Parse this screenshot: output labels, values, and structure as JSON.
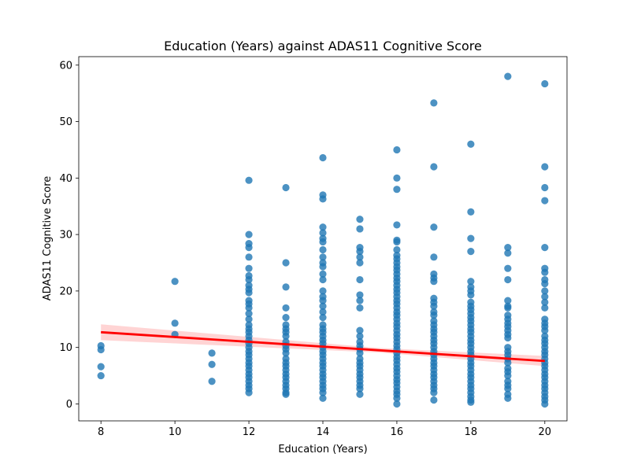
{
  "chart_data": {
    "type": "scatter",
    "title": "Education (Years) against ADAS11 Cognitive Score",
    "xlabel": "Education (Years)",
    "ylabel": "ADAS11 Cognitive Score",
    "xlim": [
      7.4,
      20.6
    ],
    "ylim": [
      -3,
      61.5
    ],
    "xticks": [
      8,
      10,
      12,
      14,
      16,
      18,
      20
    ],
    "yticks": [
      0,
      10,
      20,
      30,
      40,
      50,
      60
    ],
    "grid": false,
    "point_color": "#1f77b4",
    "regression": {
      "color": "#ff0000",
      "ci_color": "#ffcccc",
      "x": [
        8,
        20
      ],
      "y": [
        12.7,
        7.6
      ],
      "ci_halfwidth_start": 1.4,
      "ci_halfwidth_mid": 0.4,
      "ci_halfwidth_end": 0.9
    },
    "points": [
      [
        8,
        10.3
      ],
      [
        8,
        9.6
      ],
      [
        8,
        6.6
      ],
      [
        8,
        5.0
      ],
      [
        10,
        21.7
      ],
      [
        10,
        14.3
      ],
      [
        10,
        12.3
      ],
      [
        11,
        9.0
      ],
      [
        11,
        7.0
      ],
      [
        11,
        4.0
      ],
      [
        12,
        39.6
      ],
      [
        12,
        30.0
      ],
      [
        12,
        28.4
      ],
      [
        12,
        27.7
      ],
      [
        12,
        26.0
      ],
      [
        12,
        24.0
      ],
      [
        12,
        22.7
      ],
      [
        12,
        22.0
      ],
      [
        12,
        21.0
      ],
      [
        12,
        20.3
      ],
      [
        12,
        19.7
      ],
      [
        12,
        18.3
      ],
      [
        12,
        17.7
      ],
      [
        12,
        17.0
      ],
      [
        12,
        16.0
      ],
      [
        12,
        15.0
      ],
      [
        12,
        14.0
      ],
      [
        12,
        13.3
      ],
      [
        12,
        12.7
      ],
      [
        12,
        12.0
      ],
      [
        12,
        11.3
      ],
      [
        12,
        10.7
      ],
      [
        12,
        10.0
      ],
      [
        12,
        9.3
      ],
      [
        12,
        8.7
      ],
      [
        12,
        8.0
      ],
      [
        12,
        7.3
      ],
      [
        12,
        6.7
      ],
      [
        12,
        6.0
      ],
      [
        12,
        5.3
      ],
      [
        12,
        4.7
      ],
      [
        12,
        4.0
      ],
      [
        12,
        3.3
      ],
      [
        12,
        2.7
      ],
      [
        12,
        2.0
      ],
      [
        13,
        38.3
      ],
      [
        13,
        25.0
      ],
      [
        13,
        20.7
      ],
      [
        13,
        17.0
      ],
      [
        13,
        15.3
      ],
      [
        13,
        14.0
      ],
      [
        13,
        13.3
      ],
      [
        13,
        12.7
      ],
      [
        13,
        12.0
      ],
      [
        13,
        11.0
      ],
      [
        13,
        10.3
      ],
      [
        13,
        9.7
      ],
      [
        13,
        9.0
      ],
      [
        13,
        8.0
      ],
      [
        13,
        7.3
      ],
      [
        13,
        6.7
      ],
      [
        13,
        6.0
      ],
      [
        13,
        5.3
      ],
      [
        13,
        4.7
      ],
      [
        13,
        4.0
      ],
      [
        13,
        3.3
      ],
      [
        13,
        2.7
      ],
      [
        13,
        2.0
      ],
      [
        13,
        1.7
      ],
      [
        14,
        43.6
      ],
      [
        14,
        37.0
      ],
      [
        14,
        36.3
      ],
      [
        14,
        31.3
      ],
      [
        14,
        30.3
      ],
      [
        14,
        29.3
      ],
      [
        14,
        28.7
      ],
      [
        14,
        27.3
      ],
      [
        14,
        26.0
      ],
      [
        14,
        25.0
      ],
      [
        14,
        24.3
      ],
      [
        14,
        23.0
      ],
      [
        14,
        22.0
      ],
      [
        14,
        20.0
      ],
      [
        14,
        19.0
      ],
      [
        14,
        18.3
      ],
      [
        14,
        17.3
      ],
      [
        14,
        16.3
      ],
      [
        14,
        15.3
      ],
      [
        14,
        14.0
      ],
      [
        14,
        13.3
      ],
      [
        14,
        12.7
      ],
      [
        14,
        12.0
      ],
      [
        14,
        11.3
      ],
      [
        14,
        10.7
      ],
      [
        14,
        10.0
      ],
      [
        14,
        9.3
      ],
      [
        14,
        8.7
      ],
      [
        14,
        8.0
      ],
      [
        14,
        7.3
      ],
      [
        14,
        6.7
      ],
      [
        14,
        6.0
      ],
      [
        14,
        5.3
      ],
      [
        14,
        4.7
      ],
      [
        14,
        4.0
      ],
      [
        14,
        3.3
      ],
      [
        14,
        2.7
      ],
      [
        14,
        2.0
      ],
      [
        14,
        1.0
      ],
      [
        15,
        32.7
      ],
      [
        15,
        31.0
      ],
      [
        15,
        27.7
      ],
      [
        15,
        27.0
      ],
      [
        15,
        26.0
      ],
      [
        15,
        25.0
      ],
      [
        15,
        22.0
      ],
      [
        15,
        19.3
      ],
      [
        15,
        18.3
      ],
      [
        15,
        17.0
      ],
      [
        15,
        13.0
      ],
      [
        15,
        12.0
      ],
      [
        15,
        11.0
      ],
      [
        15,
        10.3
      ],
      [
        15,
        9.7
      ],
      [
        15,
        9.0
      ],
      [
        15,
        8.0
      ],
      [
        15,
        7.3
      ],
      [
        15,
        6.7
      ],
      [
        15,
        6.0
      ],
      [
        15,
        5.3
      ],
      [
        15,
        4.7
      ],
      [
        15,
        4.0
      ],
      [
        15,
        3.3
      ],
      [
        15,
        2.7
      ],
      [
        15,
        1.7
      ],
      [
        16,
        45.0
      ],
      [
        16,
        40.0
      ],
      [
        16,
        38.0
      ],
      [
        16,
        31.7
      ],
      [
        16,
        29.0
      ],
      [
        16,
        28.7
      ],
      [
        16,
        27.3
      ],
      [
        16,
        26.3
      ],
      [
        16,
        25.7
      ],
      [
        16,
        25.0
      ],
      [
        16,
        24.3
      ],
      [
        16,
        23.7
      ],
      [
        16,
        23.0
      ],
      [
        16,
        22.3
      ],
      [
        16,
        21.7
      ],
      [
        16,
        21.0
      ],
      [
        16,
        20.3
      ],
      [
        16,
        19.7
      ],
      [
        16,
        19.0
      ],
      [
        16,
        18.3
      ],
      [
        16,
        17.7
      ],
      [
        16,
        17.0
      ],
      [
        16,
        16.3
      ],
      [
        16,
        15.7
      ],
      [
        16,
        15.0
      ],
      [
        16,
        14.3
      ],
      [
        16,
        13.7
      ],
      [
        16,
        13.0
      ],
      [
        16,
        12.3
      ],
      [
        16,
        11.7
      ],
      [
        16,
        11.0
      ],
      [
        16,
        10.3
      ],
      [
        16,
        9.7
      ],
      [
        16,
        9.0
      ],
      [
        16,
        8.3
      ],
      [
        16,
        7.7
      ],
      [
        16,
        7.0
      ],
      [
        16,
        6.3
      ],
      [
        16,
        5.7
      ],
      [
        16,
        5.0
      ],
      [
        16,
        4.3
      ],
      [
        16,
        3.7
      ],
      [
        16,
        3.0
      ],
      [
        16,
        2.3
      ],
      [
        16,
        1.7
      ],
      [
        16,
        1.0
      ],
      [
        16,
        0.0
      ],
      [
        17,
        53.3
      ],
      [
        17,
        42.0
      ],
      [
        17,
        31.3
      ],
      [
        17,
        26.0
      ],
      [
        17,
        23.0
      ],
      [
        17,
        22.3
      ],
      [
        17,
        21.7
      ],
      [
        17,
        18.7
      ],
      [
        17,
        18.0
      ],
      [
        17,
        17.3
      ],
      [
        17,
        16.3
      ],
      [
        17,
        15.7
      ],
      [
        17,
        14.7
      ],
      [
        17,
        14.0
      ],
      [
        17,
        13.3
      ],
      [
        17,
        12.7
      ],
      [
        17,
        12.0
      ],
      [
        17,
        11.3
      ],
      [
        17,
        10.7
      ],
      [
        17,
        10.0
      ],
      [
        17,
        9.3
      ],
      [
        17,
        8.7
      ],
      [
        17,
        8.0
      ],
      [
        17,
        7.3
      ],
      [
        17,
        6.7
      ],
      [
        17,
        6.0
      ],
      [
        17,
        5.3
      ],
      [
        17,
        4.7
      ],
      [
        17,
        4.0
      ],
      [
        17,
        3.3
      ],
      [
        17,
        2.7
      ],
      [
        17,
        2.0
      ],
      [
        17,
        0.7
      ],
      [
        18,
        46.0
      ],
      [
        18,
        34.0
      ],
      [
        18,
        29.3
      ],
      [
        18,
        27.0
      ],
      [
        18,
        21.7
      ],
      [
        18,
        20.7
      ],
      [
        18,
        20.0
      ],
      [
        18,
        19.3
      ],
      [
        18,
        18.0
      ],
      [
        18,
        17.3
      ],
      [
        18,
        16.7
      ],
      [
        18,
        16.0
      ],
      [
        18,
        15.3
      ],
      [
        18,
        14.7
      ],
      [
        18,
        14.0
      ],
      [
        18,
        13.3
      ],
      [
        18,
        12.7
      ],
      [
        18,
        12.0
      ],
      [
        18,
        11.3
      ],
      [
        18,
        10.7
      ],
      [
        18,
        10.0
      ],
      [
        18,
        9.3
      ],
      [
        18,
        8.7
      ],
      [
        18,
        8.0
      ],
      [
        18,
        7.3
      ],
      [
        18,
        6.7
      ],
      [
        18,
        6.0
      ],
      [
        18,
        5.3
      ],
      [
        18,
        4.7
      ],
      [
        18,
        4.0
      ],
      [
        18,
        3.3
      ],
      [
        18,
        2.7
      ],
      [
        18,
        2.0
      ],
      [
        18,
        1.3
      ],
      [
        18,
        0.7
      ],
      [
        18,
        0.3
      ],
      [
        19,
        58.0
      ],
      [
        19,
        27.7
      ],
      [
        19,
        26.7
      ],
      [
        19,
        24.0
      ],
      [
        19,
        22.0
      ],
      [
        19,
        18.3
      ],
      [
        19,
        17.3
      ],
      [
        19,
        17.0
      ],
      [
        19,
        15.7
      ],
      [
        19,
        15.0
      ],
      [
        19,
        14.3
      ],
      [
        19,
        13.7
      ],
      [
        19,
        13.0
      ],
      [
        19,
        12.3
      ],
      [
        19,
        11.7
      ],
      [
        19,
        10.0
      ],
      [
        19,
        9.3
      ],
      [
        19,
        8.7
      ],
      [
        19,
        8.0
      ],
      [
        19,
        7.3
      ],
      [
        19,
        6.3
      ],
      [
        19,
        5.7
      ],
      [
        19,
        5.0
      ],
      [
        19,
        4.0
      ],
      [
        19,
        3.3
      ],
      [
        19,
        2.7
      ],
      [
        19,
        1.7
      ],
      [
        19,
        1.0
      ],
      [
        20,
        56.7
      ],
      [
        20,
        42.0
      ],
      [
        20,
        38.3
      ],
      [
        20,
        36.0
      ],
      [
        20,
        27.7
      ],
      [
        20,
        24.0
      ],
      [
        20,
        23.3
      ],
      [
        20,
        22.0
      ],
      [
        20,
        21.3
      ],
      [
        20,
        20.0
      ],
      [
        20,
        19.0
      ],
      [
        20,
        18.0
      ],
      [
        20,
        17.0
      ],
      [
        20,
        15.0
      ],
      [
        20,
        14.3
      ],
      [
        20,
        13.7
      ],
      [
        20,
        13.0
      ],
      [
        20,
        12.0
      ],
      [
        20,
        11.3
      ],
      [
        20,
        10.7
      ],
      [
        20,
        10.0
      ],
      [
        20,
        9.3
      ],
      [
        20,
        8.7
      ],
      [
        20,
        8.0
      ],
      [
        20,
        7.3
      ],
      [
        20,
        6.7
      ],
      [
        20,
        6.0
      ],
      [
        20,
        5.3
      ],
      [
        20,
        4.7
      ],
      [
        20,
        4.0
      ],
      [
        20,
        3.3
      ],
      [
        20,
        2.7
      ],
      [
        20,
        2.0
      ],
      [
        20,
        1.3
      ],
      [
        20,
        0.7
      ],
      [
        20,
        0.0
      ]
    ]
  }
}
